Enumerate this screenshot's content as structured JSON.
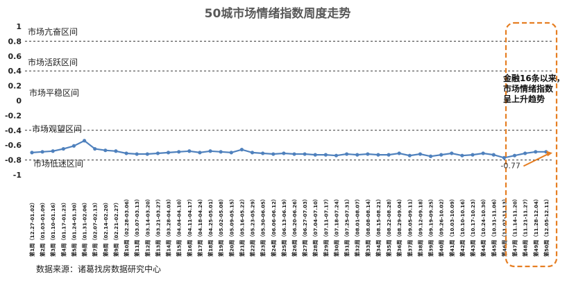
{
  "chart_data": {
    "type": "line",
    "title": "50城市场情绪指数周度走势",
    "xlabel": "",
    "ylabel": "",
    "ylim": [
      -1,
      1
    ],
    "yticks": [
      "1",
      "0.8",
      "0.6",
      "0.4",
      "0.2",
      "0",
      "-0.2",
      "-0.4",
      "-0.6",
      "-0.8",
      "-1"
    ],
    "grid": false,
    "legend": "none",
    "line_color": "#4f81bd",
    "categories": [
      "第1周（12.27-01.02）",
      "第2周（01.03-01.09）",
      "第3周（01.10-01.16）",
      "第4周（01.17-01.23）",
      "第5周（01.24-01.30）",
      "第6周（01.31-02.06）",
      "第7周（02.07-02.13）",
      "第8周（02.14-02.20）",
      "第9周（02.21-02.27）",
      "第10周（02.28-03.06）",
      "第11周（03.07-03.13）",
      "第12周（03.14-03.20）",
      "第13周（03.21-03.27）",
      "第14周（03.28-04.03）",
      "第15周（04.04-04.10）",
      "第16周（04.11-04.17）",
      "第17周（04.18-04.24）",
      "第18周（04.25-05.01）",
      "第19周（05.02-05.08）",
      "第20周（05.09-05.15）",
      "第21周（05.16-05.22）",
      "第22周（05.23-05.29）",
      "第23周（05.30-06.05）",
      "第24周（06.06-06.12）",
      "第25周（06.13-06.19）",
      "第26周（06.20-06.26）",
      "第27周（06.27-07.03）",
      "第28周（07.04-07.10）",
      "第29周（07.11-07.17）",
      "第30周（07.18-07.24）",
      "第31周（07.25-07.31）",
      "第32周（08.01-08.07）",
      "第33周（08.08-08.14）",
      "第34周（08.15-08.21）",
      "第35周（08.22-08.28）",
      "第36周（08.29-09.04）",
      "第37周（09.05-09.11）",
      "第38周（09.12-09.18）",
      "第39周（09.19-09.25）",
      "第40周（09.26-10.02）",
      "第41周（10.03-10.09）",
      "第42周（10.10-10.16）",
      "第43周（10.17-10.23）",
      "第44周（10.24-10.30）",
      "第45周（10.31-11.06）",
      "第46周（11.07-11.13）",
      "第47周（11.14-11.20）",
      "第48周（11.21-11.27）",
      "第49周（11.28-12.04）",
      "第50周（12.05-12.11）"
    ],
    "values": [
      -0.7,
      -0.69,
      -0.68,
      -0.65,
      -0.61,
      -0.54,
      -0.65,
      -0.67,
      -0.68,
      -0.71,
      -0.72,
      -0.72,
      -0.71,
      -0.7,
      -0.69,
      -0.68,
      -0.7,
      -0.68,
      -0.69,
      -0.7,
      -0.66,
      -0.7,
      -0.71,
      -0.72,
      -0.71,
      -0.72,
      -0.72,
      -0.73,
      -0.73,
      -0.74,
      -0.72,
      -0.73,
      -0.72,
      -0.73,
      -0.73,
      -0.71,
      -0.74,
      -0.72,
      -0.75,
      -0.73,
      -0.71,
      -0.74,
      -0.73,
      -0.71,
      -0.73,
      -0.77,
      -0.74,
      -0.71,
      -0.69,
      -0.69
    ],
    "data_label": "-0.77",
    "zones": [
      {
        "label": "市场亢奋区间",
        "boundary": 0.8
      },
      {
        "label": "市场活跃区间",
        "boundary": 0.4
      },
      {
        "label": "市场平稳区间",
        "boundary": -0.4
      },
      {
        "label": "市场观望区间",
        "boundary": -0.8
      },
      {
        "label": "市场低迷区间"
      }
    ],
    "annotation": [
      "金融16条以来，",
      "市场情绪指数",
      "呈上升趋势"
    ],
    "annotation_color": "#e67e22"
  },
  "source": "数据来源：诸葛找房数据研究中心"
}
